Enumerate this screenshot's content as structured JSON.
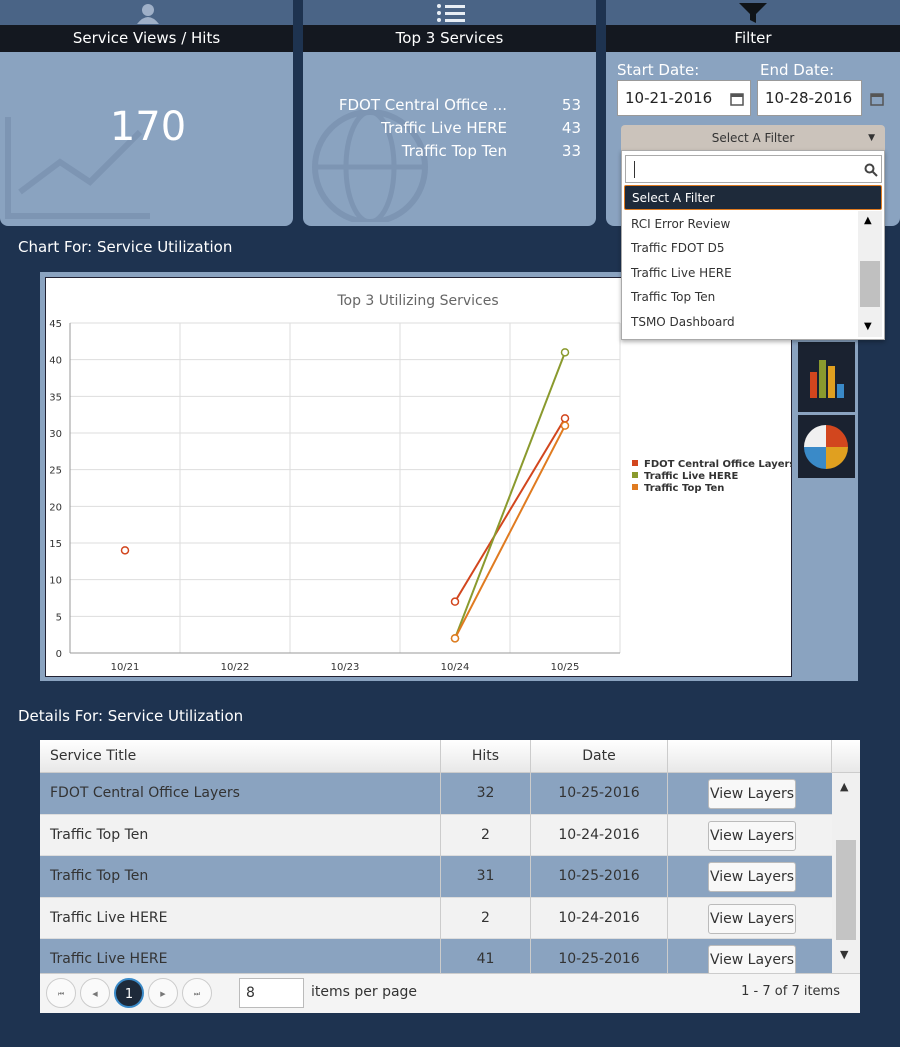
{
  "cards": [
    {
      "title": "Service Views / Hits",
      "value": 170
    },
    {
      "title": "Top 3 Services",
      "items": [
        {
          "name": "FDOT Central Office ...",
          "hits": 53
        },
        {
          "name": "Traffic Live HERE",
          "hits": 43
        },
        {
          "name": "Traffic Top Ten",
          "hits": 33
        }
      ]
    },
    {
      "title": "Filter",
      "start_label": "Start Date:",
      "start_date": "10-21-2016",
      "end_label": "End Date:",
      "end_date": "10-28-2016",
      "select": "Select A Filter",
      "options": [
        "Select A Filter",
        "RCI Error Review",
        "Traffic FDOT D5",
        "Traffic Live HERE",
        "Traffic Top Ten",
        "TSMO Dashboard"
      ]
    }
  ],
  "chart_heading": "Chart For: Service Utilization",
  "chart_data": {
    "type": "line",
    "title": "Top 3 Utilizing Services",
    "categories": [
      "10/21",
      "10/22",
      "10/23",
      "10/24",
      "10/25"
    ],
    "series": [
      {
        "name": "FDOT Central Office Layers",
        "color": "#d2461e",
        "values": [
          14,
          null,
          null,
          7,
          32
        ]
      },
      {
        "name": "Traffic Live HERE",
        "color": "#8a9a2e",
        "values": [
          null,
          null,
          null,
          2,
          41
        ]
      },
      {
        "name": "Traffic Top Ten",
        "color": "#e07b20",
        "values": [
          null,
          null,
          null,
          2,
          31
        ]
      }
    ],
    "ylim": [
      0,
      45
    ],
    "yticks": [
      0,
      5,
      10,
      15,
      20,
      25,
      30,
      35,
      40,
      45
    ],
    "grid": true,
    "legend": "right"
  },
  "details_heading": "Details For: Service Utilization",
  "table": {
    "columns": [
      "Service Title",
      "Hits",
      "Date"
    ],
    "rows": [
      [
        "FDOT Central Office Layers",
        32,
        "10-25-2016"
      ],
      [
        "Traffic Top Ten",
        2,
        "10-24-2016"
      ],
      [
        "Traffic Top Ten",
        31,
        "10-25-2016"
      ],
      [
        "Traffic Live HERE",
        2,
        "10-24-2016"
      ],
      [
        "Traffic Live HERE",
        41,
        "10-25-2016"
      ]
    ],
    "button": "View Layers"
  },
  "pager": {
    "page": 1,
    "page_size": 8,
    "page_size_label": "items per page",
    "summary": "1 - 7 of 7 items"
  }
}
